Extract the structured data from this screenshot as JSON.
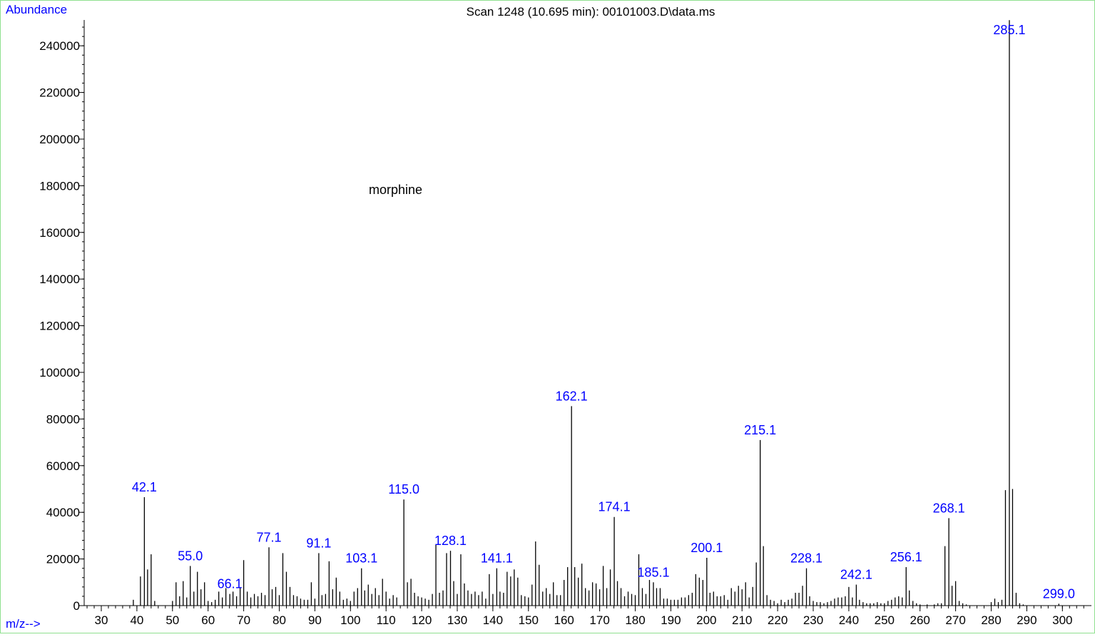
{
  "header": {
    "y_axis_title": "Abundance",
    "scan_title": "Scan 1248 (10.695 min): 00101003.D\\data.ms",
    "x_axis_title": "m/z-->"
  },
  "colors": {
    "axis_title": "#0000ff",
    "peak_label": "#0000ff",
    "frame": "#8fe08f",
    "sticks": "#000000"
  },
  "chart_data": {
    "type": "bar",
    "title": "Scan 1248 (10.695 min): 00101003.D\\data.ms",
    "annotation": "morphine",
    "xlabel": "m/z-->",
    "ylabel": "Abundance",
    "xlim": [
      25,
      306
    ],
    "ylim": [
      0,
      254000
    ],
    "x_ticks": [
      30,
      40,
      50,
      60,
      70,
      80,
      90,
      100,
      110,
      120,
      130,
      140,
      150,
      160,
      170,
      180,
      190,
      200,
      210,
      220,
      230,
      240,
      250,
      260,
      270,
      280,
      290,
      300
    ],
    "y_ticks": [
      0,
      20000,
      40000,
      60000,
      80000,
      100000,
      120000,
      140000,
      160000,
      180000,
      200000,
      220000,
      240000
    ],
    "peaks": [
      [
        39,
        2500
      ],
      [
        41,
        12500
      ],
      [
        42.1,
        46500
      ],
      [
        43,
        15500
      ],
      [
        44,
        22000
      ],
      [
        45,
        2000
      ],
      [
        50,
        2000
      ],
      [
        51,
        10000
      ],
      [
        52,
        4000
      ],
      [
        53,
        10500
      ],
      [
        54,
        3500
      ],
      [
        55.0,
        17000
      ],
      [
        56,
        6000
      ],
      [
        57,
        14500
      ],
      [
        58,
        7000
      ],
      [
        59,
        10000
      ],
      [
        60,
        2000
      ],
      [
        61,
        1500
      ],
      [
        62,
        2500
      ],
      [
        63,
        6000
      ],
      [
        64,
        3500
      ],
      [
        65,
        7500
      ],
      [
        66.1,
        5000
      ],
      [
        67,
        6000
      ],
      [
        68,
        4000
      ],
      [
        69,
        7500
      ],
      [
        70,
        19500
      ],
      [
        71,
        6000
      ],
      [
        72,
        3500
      ],
      [
        73,
        5000
      ],
      [
        74,
        4000
      ],
      [
        75,
        5500
      ],
      [
        76,
        4500
      ],
      [
        77.1,
        25000
      ],
      [
        78,
        7000
      ],
      [
        79,
        8000
      ],
      [
        80,
        4500
      ],
      [
        81,
        22500
      ],
      [
        82,
        14500
      ],
      [
        83,
        8000
      ],
      [
        84,
        4500
      ],
      [
        85,
        4000
      ],
      [
        86,
        3000
      ],
      [
        87,
        2500
      ],
      [
        88,
        2500
      ],
      [
        89,
        10000
      ],
      [
        90,
        3000
      ],
      [
        91.1,
        22500
      ],
      [
        92,
        4500
      ],
      [
        93,
        5000
      ],
      [
        94,
        19000
      ],
      [
        95,
        7000
      ],
      [
        96,
        12000
      ],
      [
        97,
        6000
      ],
      [
        98,
        2500
      ],
      [
        99,
        3000
      ],
      [
        100,
        2000
      ],
      [
        101,
        6000
      ],
      [
        102,
        7500
      ],
      [
        103.1,
        16000
      ],
      [
        104,
        6500
      ],
      [
        105,
        9000
      ],
      [
        106,
        5000
      ],
      [
        107,
        7500
      ],
      [
        108,
        4500
      ],
      [
        109,
        11500
      ],
      [
        110,
        6000
      ],
      [
        111,
        3000
      ],
      [
        112,
        4500
      ],
      [
        113,
        3500
      ],
      [
        115.0,
        45500
      ],
      [
        116,
        10000
      ],
      [
        117,
        11500
      ],
      [
        118,
        5500
      ],
      [
        119,
        4000
      ],
      [
        120,
        3500
      ],
      [
        121,
        3000
      ],
      [
        122,
        2500
      ],
      [
        123,
        5000
      ],
      [
        124,
        26000
      ],
      [
        125,
        5500
      ],
      [
        126,
        6500
      ],
      [
        127,
        22500
      ],
      [
        128.1,
        23500
      ],
      [
        129,
        10500
      ],
      [
        130,
        5000
      ],
      [
        131,
        22000
      ],
      [
        132,
        9500
      ],
      [
        133,
        6500
      ],
      [
        134,
        5000
      ],
      [
        135,
        6000
      ],
      [
        136,
        4500
      ],
      [
        137,
        6000
      ],
      [
        138,
        3000
      ],
      [
        139,
        13500
      ],
      [
        140,
        5000
      ],
      [
        141.1,
        16000
      ],
      [
        142,
        6000
      ],
      [
        143,
        5500
      ],
      [
        144,
        14500
      ],
      [
        145,
        12500
      ],
      [
        146,
        15500
      ],
      [
        147,
        12000
      ],
      [
        148,
        4500
      ],
      [
        149,
        4000
      ],
      [
        150,
        3500
      ],
      [
        151,
        9000
      ],
      [
        152,
        27500
      ],
      [
        153,
        17500
      ],
      [
        154,
        6000
      ],
      [
        155,
        7500
      ],
      [
        156,
        5000
      ],
      [
        157,
        10000
      ],
      [
        158,
        4500
      ],
      [
        159,
        4500
      ],
      [
        160,
        11000
      ],
      [
        161,
        16500
      ],
      [
        162.1,
        85500
      ],
      [
        163,
        16500
      ],
      [
        164,
        12000
      ],
      [
        165,
        18000
      ],
      [
        166,
        7500
      ],
      [
        167,
        6500
      ],
      [
        168,
        10000
      ],
      [
        169,
        9500
      ],
      [
        170,
        7000
      ],
      [
        171,
        17000
      ],
      [
        172,
        7500
      ],
      [
        173,
        15500
      ],
      [
        174.1,
        38000
      ],
      [
        175,
        10500
      ],
      [
        176,
        7500
      ],
      [
        177,
        4000
      ],
      [
        178,
        6000
      ],
      [
        179,
        5000
      ],
      [
        180,
        4500
      ],
      [
        181,
        22000
      ],
      [
        182,
        7500
      ],
      [
        183,
        5000
      ],
      [
        184,
        11000
      ],
      [
        185.1,
        10000
      ],
      [
        186,
        7500
      ],
      [
        187,
        7500
      ],
      [
        188,
        3000
      ],
      [
        189,
        3000
      ],
      [
        190,
        2500
      ],
      [
        191,
        2500
      ],
      [
        192,
        2500
      ],
      [
        193,
        3500
      ],
      [
        194,
        3500
      ],
      [
        195,
        4500
      ],
      [
        196,
        5500
      ],
      [
        197,
        13500
      ],
      [
        198,
        12000
      ],
      [
        199,
        11000
      ],
      [
        200.1,
        20500
      ],
      [
        201,
        5500
      ],
      [
        202,
        6000
      ],
      [
        203,
        4000
      ],
      [
        204,
        4000
      ],
      [
        205,
        4500
      ],
      [
        206,
        2500
      ],
      [
        207,
        7500
      ],
      [
        208,
        6000
      ],
      [
        209,
        8500
      ],
      [
        210,
        7000
      ],
      [
        211,
        10000
      ],
      [
        212,
        3500
      ],
      [
        213,
        8000
      ],
      [
        214,
        18500
      ],
      [
        215.1,
        71000
      ],
      [
        216,
        25500
      ],
      [
        217,
        4500
      ],
      [
        218,
        2500
      ],
      [
        219,
        2000
      ],
      [
        220,
        1000
      ],
      [
        221,
        2500
      ],
      [
        222,
        1500
      ],
      [
        223,
        2500
      ],
      [
        224,
        3000
      ],
      [
        225,
        5500
      ],
      [
        226,
        5500
      ],
      [
        227,
        8500
      ],
      [
        228.1,
        16000
      ],
      [
        229,
        4000
      ],
      [
        230,
        2000
      ],
      [
        231,
        1500
      ],
      [
        232,
        1500
      ],
      [
        233,
        1000
      ],
      [
        234,
        1500
      ],
      [
        235,
        2000
      ],
      [
        236,
        3000
      ],
      [
        237,
        3500
      ],
      [
        238,
        3500
      ],
      [
        239,
        4000
      ],
      [
        240,
        8000
      ],
      [
        241,
        3500
      ],
      [
        242.1,
        9000
      ],
      [
        243,
        2500
      ],
      [
        244,
        1500
      ],
      [
        245,
        1000
      ],
      [
        246,
        1000
      ],
      [
        247,
        1000
      ],
      [
        248,
        1500
      ],
      [
        249,
        1000
      ],
      [
        250,
        1000
      ],
      [
        251,
        2000
      ],
      [
        252,
        2500
      ],
      [
        253,
        3500
      ],
      [
        254,
        4000
      ],
      [
        255,
        3500
      ],
      [
        256.1,
        16500
      ],
      [
        257,
        6500
      ],
      [
        258,
        2000
      ],
      [
        259,
        1000
      ],
      [
        260,
        500
      ],
      [
        262,
        500
      ],
      [
        264,
        500
      ],
      [
        265,
        1000
      ],
      [
        266,
        1000
      ],
      [
        267,
        25500
      ],
      [
        268.1,
        37500
      ],
      [
        269,
        8500
      ],
      [
        270,
        10500
      ],
      [
        271,
        2000
      ],
      [
        272,
        1000
      ],
      [
        273,
        500
      ],
      [
        280,
        1500
      ],
      [
        281,
        3000
      ],
      [
        282,
        1500
      ],
      [
        283,
        2500
      ],
      [
        284,
        49500
      ],
      [
        285.1,
        251000
      ],
      [
        286,
        50000
      ],
      [
        287,
        5500
      ],
      [
        288,
        1000
      ],
      [
        289,
        500
      ],
      [
        299.0,
        800
      ]
    ],
    "labeled_peaks": [
      {
        "label": "42.1",
        "x": 42.1,
        "y": 46500
      },
      {
        "label": "55.0",
        "x": 55.0,
        "y": 17000
      },
      {
        "label": "66.1",
        "x": 66.1,
        "y": 5000
      },
      {
        "label": "77.1",
        "x": 77.1,
        "y": 25000
      },
      {
        "label": "91.1",
        "x": 91.1,
        "y": 22500
      },
      {
        "label": "103.1",
        "x": 103.1,
        "y": 16000
      },
      {
        "label": "115.0",
        "x": 115.0,
        "y": 45500
      },
      {
        "label": "128.1",
        "x": 128.1,
        "y": 23500
      },
      {
        "label": "141.1",
        "x": 141.1,
        "y": 16000
      },
      {
        "label": "162.1",
        "x": 162.1,
        "y": 85500
      },
      {
        "label": "174.1",
        "x": 174.1,
        "y": 38000
      },
      {
        "label": "185.1",
        "x": 185.1,
        "y": 10000
      },
      {
        "label": "200.1",
        "x": 200.1,
        "y": 20500
      },
      {
        "label": "215.1",
        "x": 215.1,
        "y": 71000
      },
      {
        "label": "228.1",
        "x": 228.1,
        "y": 16000
      },
      {
        "label": "242.1",
        "x": 242.1,
        "y": 9000
      },
      {
        "label": "256.1",
        "x": 256.1,
        "y": 16500
      },
      {
        "label": "268.1",
        "x": 268.1,
        "y": 37500
      },
      {
        "label": "285.1",
        "x": 285.1,
        "y": 251000
      },
      {
        "label": "299.0",
        "x": 299.0,
        "y": 800
      }
    ]
  }
}
